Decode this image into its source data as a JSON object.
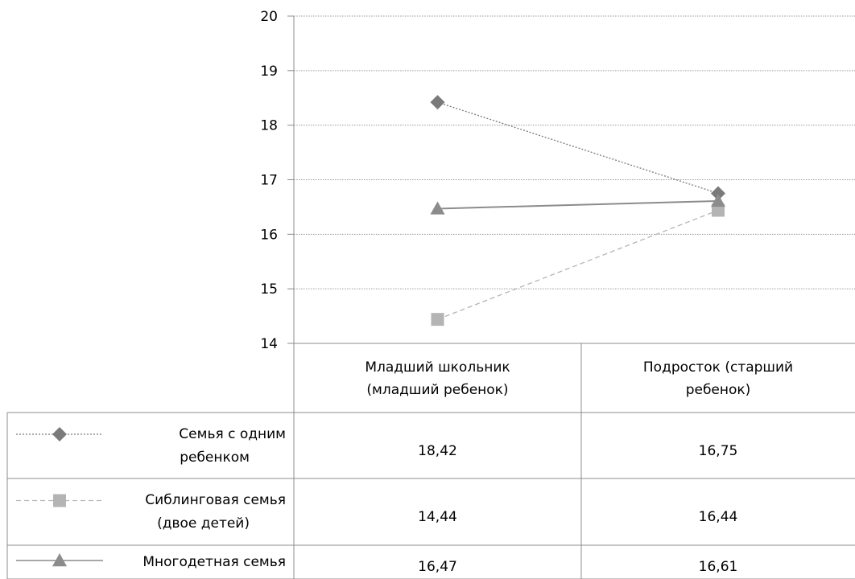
{
  "chart_data": {
    "type": "line",
    "categories": [
      [
        "Младший школьник",
        "(младший ребенок)"
      ],
      [
        "Подросток (старший",
        "ребенок)"
      ]
    ],
    "ylim": [
      14,
      20
    ],
    "yticks": [
      14,
      15,
      16,
      17,
      18,
      19,
      20
    ],
    "grid": true,
    "legend": "data-table-left",
    "series": [
      {
        "name": [
          "Семья с одним",
          "ребенком"
        ],
        "values": [
          18.42,
          16.75
        ],
        "labels": [
          "18,42",
          "16,75"
        ],
        "marker": "diamond",
        "line": "dotted",
        "color": "#7a7a7a"
      },
      {
        "name": [
          "Сиблинговая семья",
          "(двое детей)"
        ],
        "values": [
          14.44,
          16.44
        ],
        "labels": [
          "14,44",
          "16,44"
        ],
        "marker": "square",
        "line": "dashed",
        "color": "#b4b4b4"
      },
      {
        "name": [
          "Многодетная семья"
        ],
        "values": [
          16.47,
          16.61
        ],
        "labels": [
          "16,47",
          "16,61"
        ],
        "marker": "triangle",
        "line": "solid",
        "color": "#8c8c8c"
      }
    ]
  }
}
